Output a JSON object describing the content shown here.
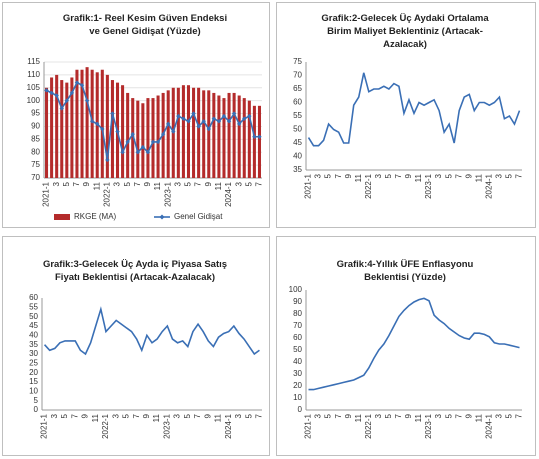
{
  "chart_data": [
    {
      "type": "combo",
      "title": "Grafik:1- Reel Kesim Güven Endeksi ve Genel Gidişat (Yüzde)",
      "categories": [
        "2021-1",
        null,
        "3",
        null,
        "5",
        null,
        "7",
        null,
        "9",
        null,
        "11",
        null,
        "2022-1",
        null,
        "3",
        null,
        "5",
        null,
        "7",
        null,
        "9",
        null,
        "11",
        null,
        "2023-1",
        null,
        "3",
        null,
        "5",
        null,
        "7",
        null,
        "9",
        null,
        "11",
        null,
        "2024-1",
        null,
        "3",
        null,
        "5",
        null,
        "7"
      ],
      "series": [
        {
          "name": "RKGE (MA)",
          "kind": "bar",
          "color": "#b42b2b",
          "values": [
            105,
            109,
            110,
            108,
            107,
            109,
            112,
            112,
            113,
            112,
            111,
            112,
            110,
            108,
            107,
            106,
            103,
            101,
            100,
            99,
            101,
            101,
            102,
            103,
            104,
            105,
            105,
            106,
            106,
            105,
            105,
            104,
            104,
            103,
            102,
            101,
            103,
            103,
            102,
            101,
            100,
            98,
            98
          ]
        },
        {
          "name": "Genel Gidişat",
          "kind": "line",
          "color": "#3a6fb5",
          "values": [
            104,
            103,
            102,
            97,
            100,
            103,
            107,
            106,
            100,
            92,
            91,
            89,
            77,
            95,
            88,
            80,
            84,
            87,
            80,
            82,
            80,
            84,
            84,
            87,
            91,
            88,
            94,
            93,
            92,
            95,
            90,
            92,
            89,
            93,
            92,
            94,
            92,
            95,
            91,
            93,
            94,
            86,
            86
          ]
        }
      ],
      "ylim": [
        70,
        115
      ],
      "yticks": [
        70,
        75,
        80,
        85,
        90,
        95,
        100,
        105,
        110,
        115
      ],
      "grid": true,
      "legend": "bottom"
    },
    {
      "type": "line",
      "title": "Grafik:2-Gelecek Üç Aydaki Ortalama Birim Maliyet Beklentiniz (Artacak-Azalacak)",
      "categories": [
        "2021-1",
        null,
        "3",
        null,
        "5",
        null,
        "7",
        null,
        "9",
        null,
        "11",
        null,
        "2022-1",
        null,
        "3",
        null,
        "5",
        null,
        "7",
        null,
        "9",
        null,
        "11",
        null,
        "2023-1",
        null,
        "3",
        null,
        "5",
        null,
        "7",
        null,
        "9",
        null,
        "11",
        null,
        "2024-1",
        null,
        "3",
        null,
        "5",
        null,
        "7"
      ],
      "color": "#3a6fb5",
      "values": [
        47,
        44,
        44,
        46,
        52,
        50,
        49,
        45,
        45,
        59,
        62,
        71,
        64,
        65,
        65,
        66,
        65,
        67,
        66,
        56,
        61,
        56,
        60,
        59,
        60,
        61,
        57,
        49,
        52,
        45,
        57,
        62,
        63,
        57,
        60,
        60,
        59,
        60,
        62,
        54,
        55,
        52,
        57
      ],
      "ylim": [
        35,
        75
      ],
      "yticks": [
        35,
        40,
        45,
        50,
        55,
        60,
        65,
        70,
        75
      ],
      "grid": false
    },
    {
      "type": "line",
      "title": "Grafik:3-Gelecek Üç Ayda iç Piyasa Satış Fiyatı Beklentisi (Artacak-Azalacak)",
      "categories": [
        "2021-1",
        null,
        "3",
        null,
        "5",
        null,
        "7",
        null,
        "9",
        null,
        "11",
        null,
        "2022-1",
        null,
        "3",
        null,
        "5",
        null,
        "7",
        null,
        "9",
        null,
        "11",
        null,
        "2023-1",
        null,
        "3",
        null,
        "5",
        null,
        "7",
        null,
        "9",
        null,
        "11",
        null,
        "2024-1",
        null,
        "3",
        null,
        "5",
        null,
        "7"
      ],
      "color": "#3a6fb5",
      "values": [
        35,
        32,
        33,
        36,
        37,
        37,
        37,
        32,
        30,
        36,
        45,
        54,
        42,
        45,
        48,
        46,
        44,
        42,
        38,
        32,
        40,
        36,
        38,
        42,
        45,
        38,
        36,
        37,
        34,
        42,
        46,
        42,
        37,
        34,
        39,
        41,
        42,
        45,
        41,
        38,
        34,
        30,
        32
      ],
      "ylim": [
        0,
        60
      ],
      "yticks": [
        0,
        5,
        10,
        15,
        20,
        25,
        30,
        35,
        40,
        45,
        50,
        55,
        60
      ],
      "grid": false
    },
    {
      "type": "line",
      "title": "Grafik:4-Yıllık ÜFE Enflasyonu Beklentisi (Yüzde)",
      "categories": [
        "2021-1",
        null,
        "3",
        null,
        "5",
        null,
        "7",
        null,
        "9",
        null,
        "11",
        null,
        "2022-1",
        null,
        "3",
        null,
        "5",
        null,
        "7",
        null,
        "9",
        null,
        "11",
        null,
        "2023-1",
        null,
        "3",
        null,
        "5",
        null,
        "7",
        null,
        "9",
        null,
        "11",
        null,
        "2024-1",
        null,
        "3",
        null,
        "5",
        null,
        "7"
      ],
      "color": "#3a6fb5",
      "values": [
        17,
        17,
        18,
        19,
        20,
        21,
        22,
        23,
        24,
        25,
        27,
        29,
        35,
        43,
        50,
        55,
        62,
        70,
        78,
        83,
        87,
        90,
        92,
        93,
        91,
        79,
        75,
        72,
        68,
        65,
        62,
        60,
        59,
        64,
        64,
        63,
        61,
        56,
        55,
        55,
        54,
        53,
        52
      ],
      "ylim": [
        0,
        100
      ],
      "yticks": [
        0,
        10,
        20,
        30,
        40,
        50,
        60,
        70,
        80,
        90,
        100
      ],
      "grid": false
    }
  ]
}
